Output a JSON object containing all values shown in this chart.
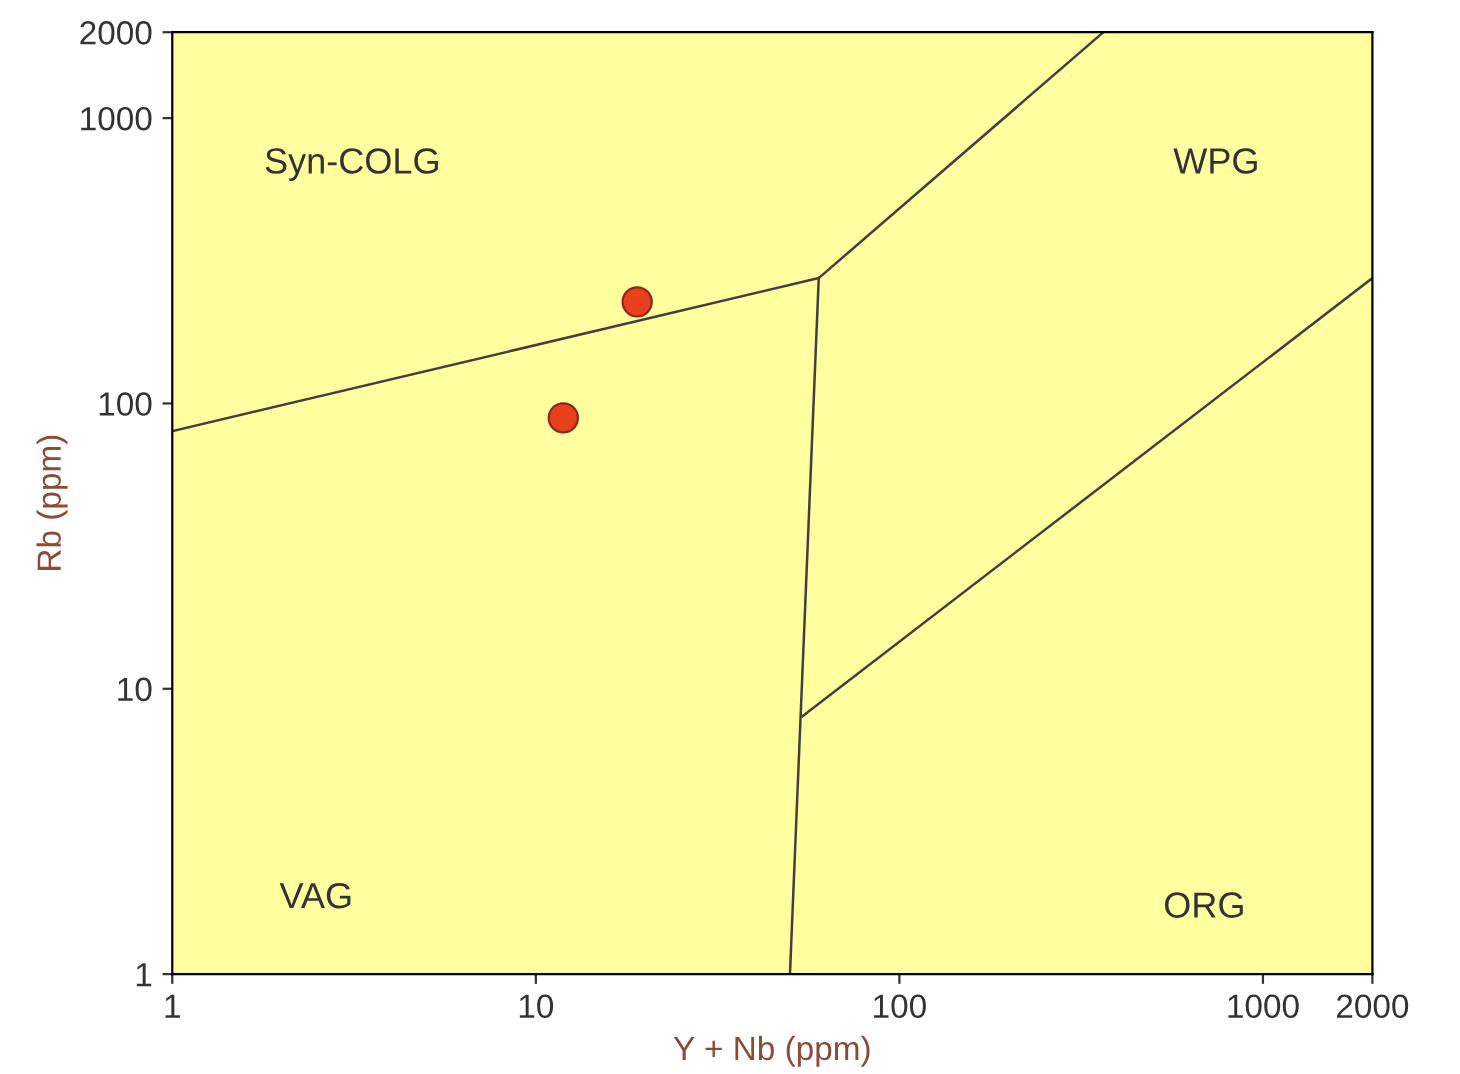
{
  "chart_data": {
    "type": "scatter",
    "xlabel": "Y + Nb (ppm)",
    "ylabel": "Rb (ppm)",
    "log": "xy",
    "xlim": [
      1,
      2000
    ],
    "ylim": [
      1,
      2000
    ],
    "xticks": [
      1,
      10,
      100,
      1000,
      2000
    ],
    "yticks": [
      1,
      10,
      100,
      1000,
      2000
    ],
    "grid": false,
    "legend": false,
    "series": [
      {
        "type": "line",
        "marker": "none",
        "color": "#404040",
        "x": [
          1,
          60
        ],
        "values": [
          80,
          275
        ]
      },
      {
        "type": "line",
        "marker": "none",
        "color": "#404040",
        "x": [
          50,
          60
        ],
        "values": [
          1,
          275
        ]
      },
      {
        "type": "line",
        "marker": "none",
        "color": "#404040",
        "x": [
          60,
          364
        ],
        "values": [
          275,
          2000
        ]
      },
      {
        "type": "line",
        "marker": "none",
        "color": "#404040",
        "x": [
          54,
          2000
        ],
        "values": [
          8,
          275
        ]
      },
      {
        "marker": "circle",
        "color": "#e8401c",
        "x": [
          19,
          11.9
        ],
        "values": [
          227,
          89
        ]
      }
    ],
    "annotations": [
      "Syn-COLG",
      "WPG",
      "VAG",
      "ORG"
    ]
  }
}
